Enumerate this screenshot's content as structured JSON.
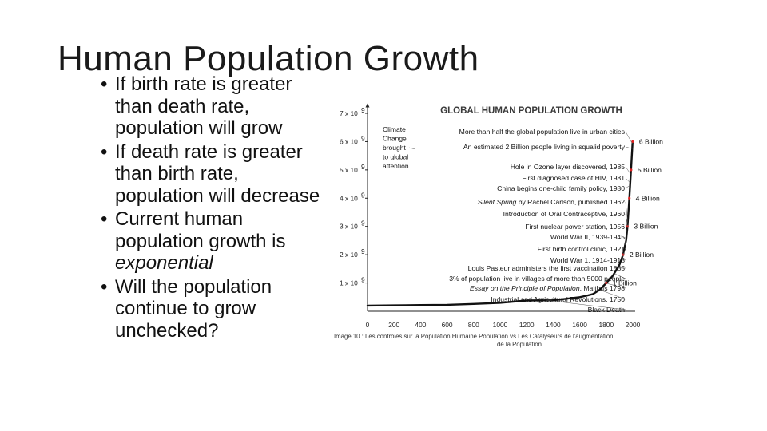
{
  "slide": {
    "title": "Human Population Growth",
    "bullets": [
      {
        "text": "If birth rate is greater than death rate, population will grow"
      },
      {
        "text": "If death rate is greater than birth rate, population will decrease"
      },
      {
        "text": "Current human population growth is ",
        "em": "exponential"
      },
      {
        "text": "Will the population continue to grow unchecked?"
      }
    ]
  },
  "chart_data": {
    "type": "line",
    "title": "GLOBAL HUMAN POPULATION GROWTH",
    "xlim": [
      0,
      2000
    ],
    "ylim": [
      0,
      7000000000
    ],
    "x_ticks": [
      "0",
      "200",
      "400",
      "600",
      "800",
      "1000",
      "1200",
      "1400",
      "1600",
      "1800",
      "2000"
    ],
    "y_ticks": [
      {
        "value": 1000000000,
        "label": "1 x 10",
        "exp": "9"
      },
      {
        "value": 2000000000,
        "label": "2 x 10",
        "exp": "9"
      },
      {
        "value": 3000000000,
        "label": "3 x 10",
        "exp": "9"
      },
      {
        "value": 4000000000,
        "label": "4 x 10",
        "exp": "9"
      },
      {
        "value": 5000000000,
        "label": "5 x 10",
        "exp": "9"
      },
      {
        "value": 6000000000,
        "label": "6 x 10",
        "exp": "9"
      },
      {
        "value": 7000000000,
        "label": "7 x 10",
        "exp": "9"
      }
    ],
    "x": [
      0,
      200,
      400,
      600,
      800,
      1000,
      1200,
      1400,
      1600,
      1650,
      1700,
      1750,
      1800,
      1850,
      1900,
      1927,
      1950,
      1960,
      1974,
      1987,
      1999
    ],
    "y": [
      200000000,
      210000000,
      220000000,
      230000000,
      260000000,
      300000000,
      380000000,
      390000000,
      500000000,
      550000000,
      610000000,
      760000000,
      1000000000,
      1260000000,
      1650000000,
      2000000000,
      2520000000,
      3000000000,
      4000000000,
      5000000000,
      6000000000
    ],
    "population_labels": [
      {
        "text": "1 Billion",
        "year": 1800,
        "pop": 1000000000
      },
      {
        "text": "2 Billion",
        "year": 1927,
        "pop": 2000000000
      },
      {
        "text": "3 Billion",
        "year": 1960,
        "pop": 3000000000
      },
      {
        "text": "4 Billion",
        "year": 1974,
        "pop": 4000000000
      },
      {
        "text": "5 Billion",
        "year": 1987,
        "pop": 5000000000
      },
      {
        "text": "6 Billion",
        "year": 1999,
        "pop": 6000000000
      }
    ],
    "annotations": [
      {
        "text": "More than half the global population live in urban cities",
        "italic": false
      },
      {
        "text": "An estimated 2 Billion people living in squalid poverty",
        "italic": false
      },
      {
        "text": "Hole in Ozone layer discovered, 1985",
        "italic": false
      },
      {
        "text": "First diagnosed case of HIV, 1981",
        "italic": false
      },
      {
        "text": "China begins one-child family policy, 1980",
        "italic": false
      },
      {
        "text": "Silent Spring",
        "suffix": " by Rachel Carlson, published 1962",
        "italic": true
      },
      {
        "text": "Introduction of Oral Contraceptive, 1960",
        "italic": false
      },
      {
        "text": "First nuclear power station, 1956",
        "italic": false
      },
      {
        "text": "World War II, 1939-1945",
        "italic": false
      },
      {
        "text": "First birth control clinic, 1921",
        "italic": false
      },
      {
        "text": "World War 1, 1914-1918",
        "italic": false
      },
      {
        "text": "Louis Pasteur administers the first vaccination 1885",
        "italic": false
      },
      {
        "text": "3% of population live in villages of more than 5000 people",
        "italic": false
      },
      {
        "text": "Essay on the Principle of Population",
        "suffix": ", Malthus 1798",
        "italic": true
      },
      {
        "text": "Industrial and Agricultural Revolutions, 1750",
        "italic": false
      },
      {
        "text": "Black Death",
        "italic": false
      }
    ],
    "side_note": [
      "Climate",
      "Change",
      "brought",
      "to global",
      "attention"
    ],
    "caption": [
      "Image 10 : Les controles sur la Population Humaine Population vs Les Catalyseurs de l'augmentation",
      "de la Population"
    ]
  }
}
